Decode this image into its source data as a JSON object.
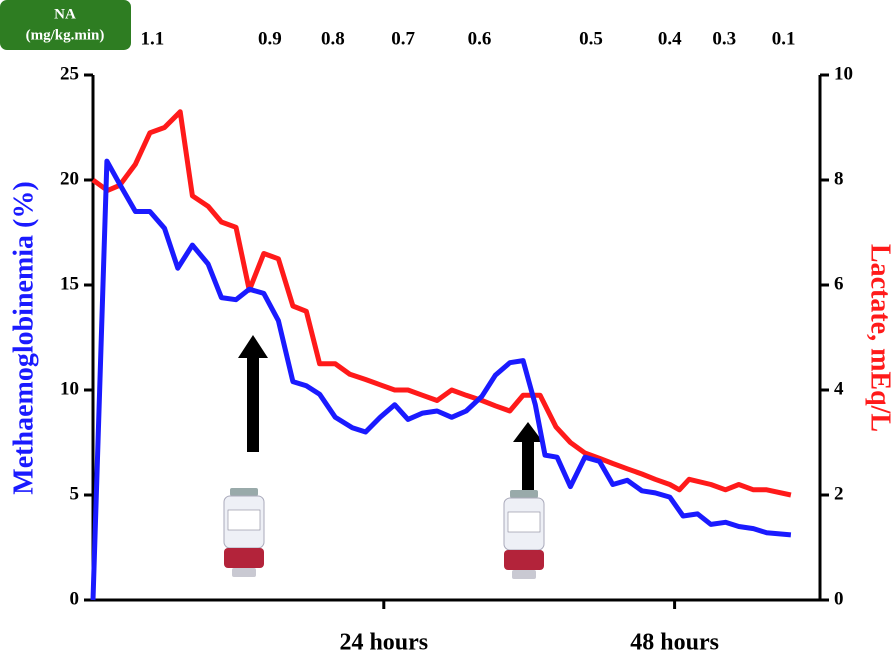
{
  "chart_data": {
    "type": "line",
    "ylabel": "Methaemoglobinemia (%)",
    "y2label": "Lactate, mEq/L",
    "xlim": [
      0,
      60
    ],
    "xticks": [
      {
        "value": 24,
        "label": "24 hours"
      },
      {
        "value": 48,
        "label": "48 hours"
      }
    ],
    "ylim": [
      0,
      25
    ],
    "yticks": [
      0,
      5,
      10,
      15,
      20,
      25
    ],
    "y2lim": [
      0,
      10
    ],
    "y2ticks": [
      0,
      2,
      4,
      6,
      8,
      10
    ],
    "na_title": "NA",
    "na_unit": "(mg/kg.min)",
    "na_doses": {
      "x": [
        4.9,
        14.6,
        19.8,
        25.6,
        31.9,
        41.1,
        47.6,
        52.1,
        57.0
      ],
      "values": [
        1.1,
        0.9,
        0.8,
        0.7,
        0.6,
        0.5,
        0.4,
        0.3,
        0.1
      ]
    },
    "series": [
      {
        "name": "Methaemoglobinemia",
        "color": "#1a1aff",
        "axis": "y",
        "x": [
          0,
          1.15,
          2.2,
          3.5,
          4.7,
          5.9,
          7.0,
          8.2,
          9.5,
          10.6,
          11.8,
          12.9,
          14.1,
          15.3,
          16.5,
          17.6,
          18.7,
          20.0,
          21.4,
          22.5,
          23.7,
          24.9,
          26.0,
          27.2,
          28.4,
          29.6,
          30.8,
          32.1,
          33.2,
          34.4,
          35.5,
          36.5,
          37.3,
          38.3,
          39.4,
          40.6,
          41.8,
          42.9,
          44.1,
          45.3,
          46.4,
          47.6,
          48.7,
          49.9,
          51.0,
          52.2,
          53.3,
          54.5,
          55.6,
          57.6
        ],
        "values": [
          0,
          20.9,
          19.8,
          18.5,
          18.5,
          17.7,
          15.8,
          16.9,
          16.0,
          14.4,
          14.3,
          14.8,
          14.6,
          13.3,
          10.4,
          10.2,
          9.8,
          8.7,
          8.2,
          8.0,
          8.7,
          9.3,
          8.6,
          8.9,
          9.0,
          8.7,
          9.0,
          9.7,
          10.7,
          11.3,
          11.4,
          9.3,
          6.9,
          6.8,
          5.4,
          6.8,
          6.6,
          5.5,
          5.7,
          5.2,
          5.1,
          4.9,
          4.0,
          4.1,
          3.6,
          3.7,
          3.5,
          3.4,
          3.2,
          3.1
        ]
      },
      {
        "name": "Lactate",
        "color": "#ff1a1a",
        "axis": "y2",
        "x": [
          0,
          1.2,
          2.2,
          3.5,
          4.7,
          5.9,
          7.2,
          8.2,
          9.5,
          10.6,
          11.8,
          12.9,
          14.1,
          15.3,
          16.5,
          17.6,
          18.7,
          20.0,
          21.2,
          22.5,
          23.7,
          24.9,
          26.0,
          27.2,
          28.4,
          29.6,
          30.8,
          32.1,
          33.2,
          34.4,
          35.5,
          36.9,
          38.2,
          39.4,
          40.6,
          41.8,
          42.9,
          44.1,
          45.3,
          46.4,
          47.6,
          48.4,
          49.2,
          51.0,
          52.2,
          53.3,
          54.5,
          55.6,
          57.6
        ],
        "values": [
          8.0,
          7.8,
          7.9,
          8.3,
          8.9,
          9.0,
          9.3,
          7.7,
          7.5,
          7.2,
          7.1,
          5.9,
          6.6,
          6.5,
          5.6,
          5.5,
          4.5,
          4.5,
          4.3,
          4.2,
          4.1,
          4.0,
          4.0,
          3.9,
          3.8,
          4.0,
          3.9,
          3.8,
          3.7,
          3.6,
          3.9,
          3.9,
          3.3,
          3.0,
          2.8,
          2.7,
          2.6,
          2.5,
          2.4,
          2.3,
          2.2,
          2.1,
          2.3,
          2.2,
          2.1,
          2.2,
          2.1,
          2.1,
          2.0
        ]
      }
    ]
  }
}
